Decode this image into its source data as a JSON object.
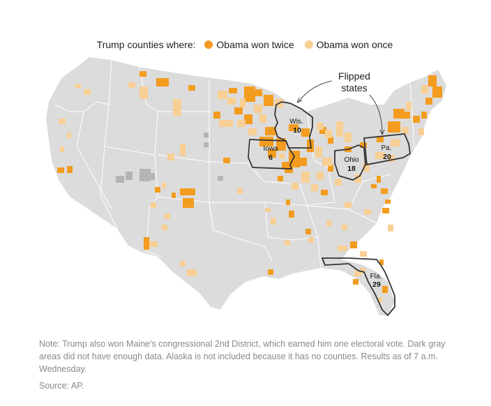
{
  "legend": {
    "title": "Trump counties where:",
    "items": [
      {
        "label": "Obama won twice",
        "color": "#f39c1f"
      },
      {
        "label": "Obama won once",
        "color": "#f8cf94"
      }
    ]
  },
  "annotation": {
    "line1": "Flipped",
    "line2": "states"
  },
  "flipped_states": [
    {
      "name": "Wis.",
      "ev": "10"
    },
    {
      "name": "Iowa",
      "ev": "6"
    },
    {
      "name": "Ohio",
      "ev": "18"
    },
    {
      "name": "Pa.",
      "ev": "20"
    },
    {
      "name": "Fla.",
      "ev": "29"
    }
  ],
  "colors": {
    "land": "#dcdcdc",
    "no_data": "#b4b4b4",
    "borders": "#ffffff",
    "flipped_outline": "#333333"
  },
  "note": "Note: Trump also won Maine's congressional 2nd District, which earned him one electoral vote. Dark gray areas did not have enough data. Alaska is not included because it has no counties. Results as of 7 a.m. Wednesday.",
  "source": "Source: AP."
}
